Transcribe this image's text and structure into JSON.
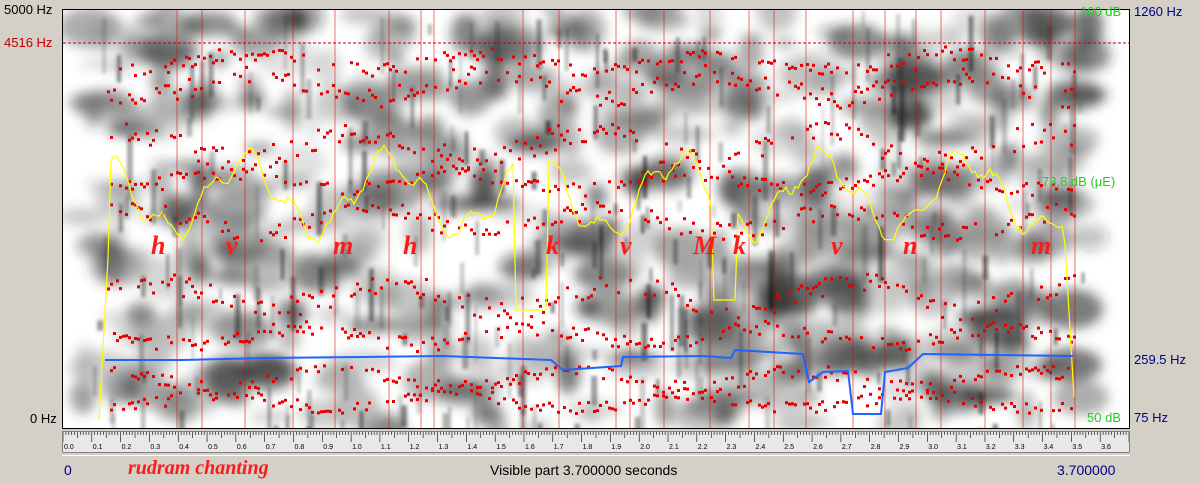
{
  "left_axis": {
    "top": "5000 Hz",
    "marker": "4516 Hz",
    "bottom": "0 Hz"
  },
  "right_axis": {
    "intensity_top": "100 dB",
    "pitch_top": "1260 Hz",
    "intensity_mid": "73.8 dB (μE)",
    "pitch_mid": "259.5 Hz",
    "intensity_bottom": "50 dB",
    "pitch_bottom": "75 Hz"
  },
  "segments": [
    {
      "text": "h"
    },
    {
      "text": "v"
    },
    {
      "text": "m"
    },
    {
      "text": "h"
    },
    {
      "text": "k"
    },
    {
      "text": "v"
    },
    {
      "text": "M"
    },
    {
      "text": "k"
    },
    {
      "text": "v"
    },
    {
      "text": "n"
    },
    {
      "text": "m"
    }
  ],
  "ruler_ticks": [
    "0.0",
    "0.1",
    "0.2",
    "0.3",
    "0.4",
    "0.5",
    "0.6",
    "0.7",
    "0.8",
    "0.9",
    "1.0",
    "1.1",
    "1.2",
    "1.3",
    "1.4",
    "1.5",
    "1.6",
    "1.7",
    "1.8",
    "1.9",
    "2.0",
    "2.1",
    "2.2",
    "2.3",
    "2.4",
    "2.5",
    "2.6",
    "2.7",
    "2.8",
    "2.9",
    "3.0",
    "3.1",
    "3.2",
    "3.3",
    "3.4",
    "3.5",
    "3.6"
  ],
  "status": {
    "start": "0",
    "caption": "rudram chanting",
    "visible": "Visible part 3.700000 seconds",
    "end": "3.700000"
  },
  "colors": {
    "formant": "#e60000",
    "intensity": "#ffff00",
    "pitch": "#1e64ff",
    "marker": "#c00000",
    "pitch_labels": "#000080",
    "intensity_labels": "#22cc22"
  }
}
